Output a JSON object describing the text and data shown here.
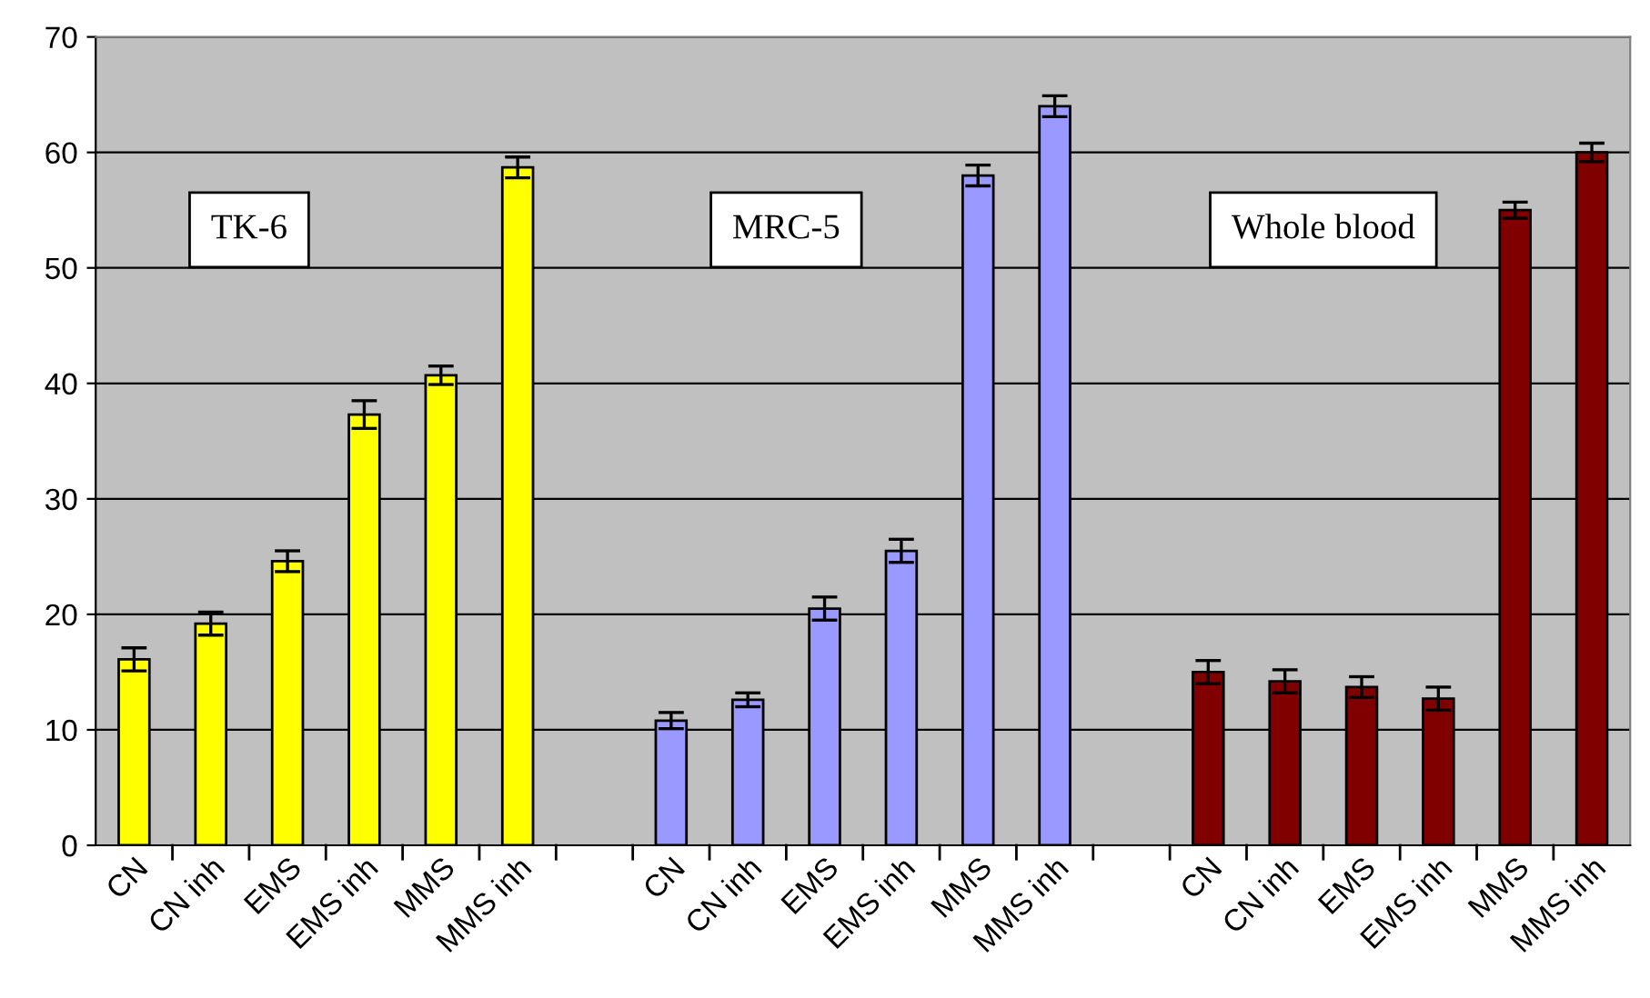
{
  "chart_data": {
    "type": "bar",
    "categories": [
      "CN",
      "CN inh",
      "EMS",
      "EMS inh",
      "MMS",
      "MMS inh",
      null,
      "CN",
      "CN inh",
      "EMS",
      "EMS inh",
      "MMS",
      "MMS inh",
      null,
      "CN",
      "CN inh",
      "EMS",
      "EMS inh",
      "MMS",
      "MMS inh"
    ],
    "values": [
      16.1,
      19.2,
      24.6,
      37.3,
      40.7,
      58.7,
      null,
      10.8,
      12.6,
      20.5,
      25.5,
      58,
      64,
      null,
      15,
      14.2,
      13.7,
      12.7,
      55,
      60
    ],
    "errors": [
      1,
      1,
      0.9,
      1.2,
      0.8,
      0.9,
      null,
      0.7,
      0.6,
      1,
      1,
      0.9,
      0.9,
      null,
      1,
      1,
      0.9,
      1,
      0.7,
      0.8
    ],
    "colors": [
      "#ffff00",
      "#ffff00",
      "#ffff00",
      "#ffff00",
      "#ffff00",
      "#ffff00",
      null,
      "#9999ff",
      "#9999ff",
      "#9999ff",
      "#9999ff",
      "#9999ff",
      "#9999ff",
      null,
      "#800000",
      "#800000",
      "#800000",
      "#800000",
      "#800000",
      "#800000"
    ],
    "annotations": [
      "TK-6",
      "MRC-5",
      "Whole blood"
    ],
    "ylim": [
      0,
      70
    ],
    "yticks": [
      0,
      10,
      20,
      30,
      40,
      50,
      60,
      70
    ],
    "grid": "y",
    "legend": false
  }
}
